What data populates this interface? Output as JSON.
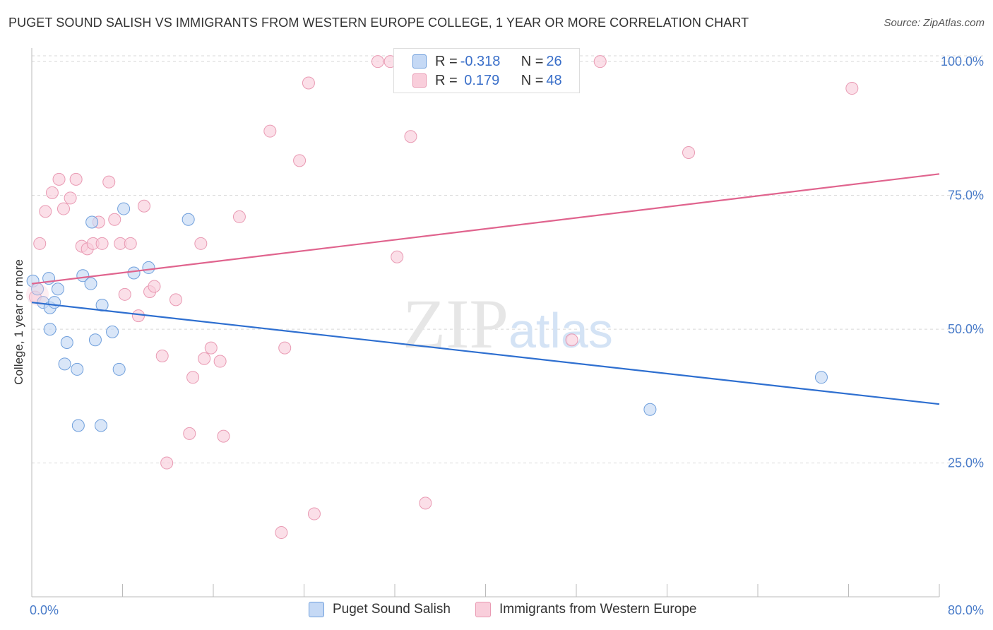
{
  "header": {
    "title": "PUGET SOUND SALISH VS IMMIGRANTS FROM WESTERN EUROPE COLLEGE, 1 YEAR OR MORE CORRELATION CHART",
    "source": "Source: ZipAtlas.com"
  },
  "watermark": {
    "zip": "ZIP",
    "atlas": "atlas"
  },
  "legend": {
    "rows": [
      {
        "r_label": "R = ",
        "r_value": "-0.318",
        "n_label": "N = ",
        "n_value": "26"
      },
      {
        "r_label": "R = ",
        "r_value": " 0.179",
        "n_label": "N = ",
        "n_value": "48"
      }
    ]
  },
  "colors": {
    "blue_fill": "#c5d9f5",
    "blue_stroke": "#6f9fdc",
    "blue_line": "#2e6fd0",
    "pink_fill": "#f9cedb",
    "pink_stroke": "#e99ab3",
    "pink_line": "#e0648e",
    "axis_label": "#4a7cc9",
    "grid": "#d8d8d8"
  },
  "chart_data": {
    "type": "scatter",
    "title": "PUGET SOUND SALISH VS IMMIGRANTS FROM WESTERN EUROPE COLLEGE, 1 YEAR OR MORE CORRELATION CHART",
    "xlabel": "",
    "ylabel": "College, 1 year or more",
    "xlim": [
      0,
      80
    ],
    "ylim": [
      0,
      102
    ],
    "x_tick_labels": [
      "0.0%",
      "80.0%"
    ],
    "y_ticks": [
      25,
      50,
      75,
      100
    ],
    "y_tick_labels": [
      "25.0%",
      "50.0%",
      "75.0%",
      "100.0%"
    ],
    "grid": true,
    "legend_position": "top-center",
    "series": [
      {
        "name": "Puget Sound Salish",
        "color": "blue",
        "points": [
          [
            0.1,
            59.0
          ],
          [
            0.5,
            57.5
          ],
          [
            1.0,
            55.0
          ],
          [
            1.5,
            59.5
          ],
          [
            1.6,
            54.0
          ],
          [
            2.3,
            57.5
          ],
          [
            1.6,
            50.0
          ],
          [
            3.1,
            47.5
          ],
          [
            2.9,
            43.5
          ],
          [
            4.0,
            42.5
          ],
          [
            4.5,
            60.0
          ],
          [
            5.2,
            58.5
          ],
          [
            5.3,
            70.0
          ],
          [
            5.6,
            48.0
          ],
          [
            6.2,
            54.5
          ],
          [
            7.1,
            49.5
          ],
          [
            7.7,
            42.5
          ],
          [
            8.1,
            72.5
          ],
          [
            9.0,
            60.5
          ],
          [
            10.3,
            61.5
          ],
          [
            13.8,
            70.5
          ],
          [
            4.1,
            32.0
          ],
          [
            6.1,
            32.0
          ],
          [
            54.5,
            35.0
          ],
          [
            69.6,
            41.0
          ],
          [
            2.0,
            55.0
          ]
        ],
        "trend": {
          "x": [
            0,
            80
          ],
          "y": [
            55.0,
            36.0
          ]
        }
      },
      {
        "name": "Immigrants from Western Europe",
        "color": "pink",
        "points": [
          [
            0.7,
            66.0
          ],
          [
            0.3,
            56.0
          ],
          [
            1.2,
            72.0
          ],
          [
            1.8,
            75.5
          ],
          [
            2.4,
            78.0
          ],
          [
            2.8,
            72.5
          ],
          [
            3.4,
            74.5
          ],
          [
            3.9,
            78.0
          ],
          [
            4.4,
            65.5
          ],
          [
            4.9,
            65.0
          ],
          [
            5.4,
            66.0
          ],
          [
            5.9,
            70.0
          ],
          [
            6.2,
            66.0
          ],
          [
            6.8,
            77.5
          ],
          [
            7.3,
            70.5
          ],
          [
            7.8,
            66.0
          ],
          [
            8.2,
            56.5
          ],
          [
            8.7,
            66.0
          ],
          [
            9.4,
            52.5
          ],
          [
            9.9,
            73.0
          ],
          [
            10.4,
            57.0
          ],
          [
            10.8,
            58.0
          ],
          [
            11.5,
            45.0
          ],
          [
            11.9,
            25.0
          ],
          [
            12.7,
            55.5
          ],
          [
            13.9,
            30.5
          ],
          [
            14.2,
            41.0
          ],
          [
            14.9,
            66.0
          ],
          [
            15.2,
            44.5
          ],
          [
            15.8,
            46.5
          ],
          [
            16.6,
            44.0
          ],
          [
            16.9,
            30.0
          ],
          [
            18.3,
            71.0
          ],
          [
            21.0,
            87.0
          ],
          [
            22.0,
            12.0
          ],
          [
            22.3,
            46.5
          ],
          [
            23.6,
            81.5
          ],
          [
            24.4,
            96.0
          ],
          [
            24.9,
            15.5
          ],
          [
            30.5,
            100.0
          ],
          [
            31.6,
            100.0
          ],
          [
            32.2,
            63.5
          ],
          [
            33.4,
            86.0
          ],
          [
            34.7,
            17.5
          ],
          [
            47.6,
            48.0
          ],
          [
            50.1,
            100.0
          ],
          [
            57.9,
            83.0
          ],
          [
            72.3,
            95.0
          ]
        ],
        "trend": {
          "x": [
            0,
            80
          ],
          "y": [
            58.5,
            79.0
          ]
        }
      }
    ]
  },
  "bottom_legend": {
    "items": [
      {
        "label": "Puget Sound Salish"
      },
      {
        "label": "Immigrants from Western Europe"
      }
    ]
  }
}
